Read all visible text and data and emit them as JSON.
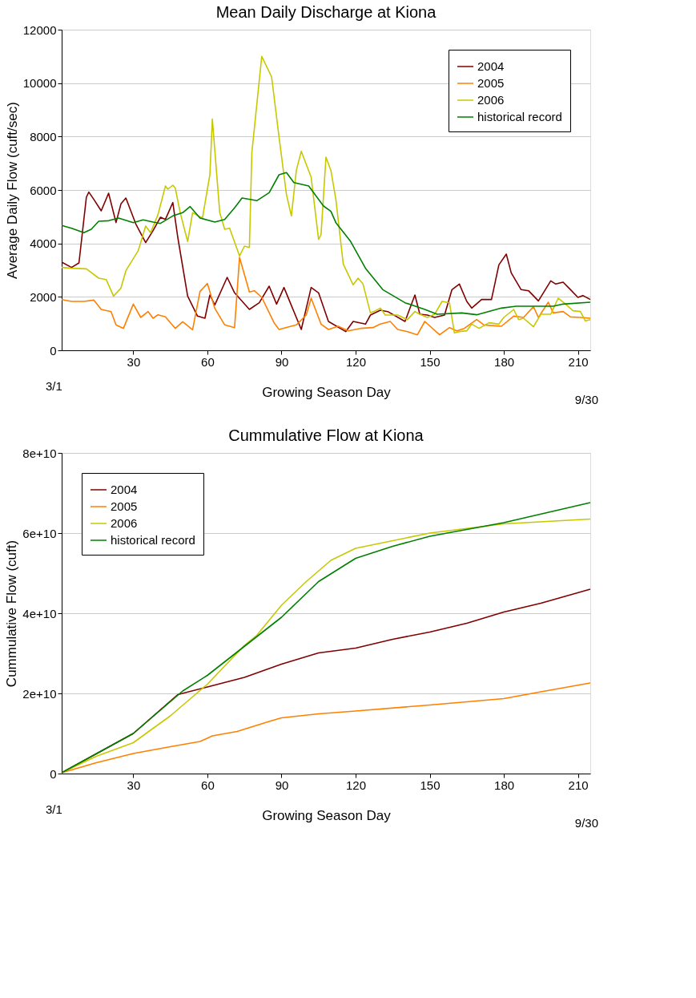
{
  "chart_data": [
    {
      "type": "line",
      "title": "Mean Daily Discharge at Kiona",
      "xlabel": "Growing Season Day",
      "ylabel": "Average Daily Flow (cuft/sec)",
      "xlim": [
        1,
        215
      ],
      "xticks": [
        30,
        60,
        90,
        120,
        150,
        180,
        210
      ],
      "ylim": [
        0,
        12000
      ],
      "yticks": [
        0,
        2000,
        4000,
        6000,
        8000,
        10000,
        12000
      ],
      "grid": "y",
      "legend": "top right",
      "annotations": [
        "3/1",
        "9/30"
      ],
      "series": [
        {
          "name": "2004",
          "color": "#800000",
          "x": [
            1,
            5,
            8,
            11,
            12,
            14,
            17,
            20,
            23,
            25,
            27,
            31,
            35,
            38,
            41,
            43,
            46,
            48,
            52,
            56,
            59,
            61,
            63,
            68,
            71,
            77,
            81,
            85,
            88,
            91,
            93,
            98,
            102,
            105,
            109,
            116,
            119,
            124,
            126,
            130,
            133,
            140,
            144,
            146,
            149,
            152,
            156,
            159,
            162,
            165,
            167,
            171,
            175,
            178,
            181,
            183,
            187,
            190,
            194,
            199,
            201,
            204,
            207,
            210,
            212,
            215
          ],
          "values": [
            3300,
            3100,
            3270,
            5730,
            5920,
            5650,
            5220,
            5880,
            4780,
            5480,
            5700,
            4730,
            4030,
            4480,
            4980,
            4900,
            5530,
            4230,
            2030,
            1280,
            1200,
            2070,
            1700,
            2730,
            2150,
            1530,
            1780,
            2400,
            1730,
            2350,
            1900,
            780,
            2350,
            2150,
            1080,
            700,
            1080,
            980,
            1320,
            1500,
            1450,
            1080,
            2070,
            1350,
            1320,
            1230,
            1320,
            2270,
            2480,
            1830,
            1580,
            1900,
            1900,
            3200,
            3600,
            2900,
            2270,
            2230,
            1850,
            2600,
            2480,
            2550,
            2270,
            1980,
            2050,
            1900
          ]
        },
        {
          "name": "2005",
          "color": "#ff8000",
          "x": [
            1,
            5,
            10,
            14,
            17,
            21,
            23,
            26,
            30,
            33,
            36,
            38,
            40,
            43,
            47,
            50,
            54,
            57,
            60,
            63,
            67,
            71,
            73,
            77,
            79,
            82,
            87,
            89,
            96,
            100,
            102,
            106,
            109,
            113,
            117,
            122,
            127,
            130,
            134,
            137,
            141,
            145,
            148,
            154,
            158,
            161,
            164,
            169,
            172,
            179,
            184,
            188,
            192,
            194,
            198,
            200,
            204,
            207,
            211,
            215
          ],
          "values": [
            1900,
            1830,
            1830,
            1880,
            1530,
            1450,
            950,
            820,
            1730,
            1230,
            1450,
            1200,
            1330,
            1250,
            820,
            1070,
            770,
            2200,
            2500,
            1570,
            950,
            850,
            3480,
            2180,
            2230,
            1980,
            1030,
            780,
            950,
            1320,
            1950,
            980,
            780,
            900,
            730,
            820,
            850,
            980,
            1080,
            780,
            700,
            580,
            1080,
            580,
            850,
            730,
            820,
            1150,
            950,
            900,
            1280,
            1230,
            1630,
            1230,
            1800,
            1400,
            1450,
            1250,
            1230,
            1200
          ]
        },
        {
          "name": "2006",
          "color": "#c8c800",
          "x": [
            1,
            5,
            11,
            16,
            19,
            22,
            25,
            27,
            32,
            35,
            37,
            40,
            43,
            44,
            46,
            47,
            49,
            52,
            54,
            58,
            61,
            62,
            65,
            67,
            69,
            73,
            75,
            77,
            78,
            82,
            86,
            89,
            92,
            94,
            96,
            98,
            102,
            105,
            106,
            108,
            110,
            112,
            115,
            119,
            121,
            123,
            126,
            128,
            130,
            132,
            137,
            141,
            144,
            146,
            149,
            152,
            155,
            158,
            160,
            162,
            165,
            167,
            170,
            174,
            178,
            180,
            184,
            186,
            188,
            192,
            195,
            199,
            202,
            205,
            208,
            211,
            213,
            215
          ],
          "values": [
            3100,
            3070,
            3050,
            2700,
            2650,
            2030,
            2330,
            2980,
            3730,
            4650,
            4400,
            5080,
            6150,
            6030,
            6180,
            6070,
            5150,
            4070,
            5150,
            4950,
            6570,
            8650,
            5150,
            4530,
            4570,
            3530,
            3900,
            3850,
            7400,
            11000,
            10230,
            7980,
            5830,
            5030,
            6730,
            7450,
            6480,
            4150,
            4330,
            7230,
            6730,
            5650,
            3230,
            2450,
            2700,
            2480,
            1400,
            1480,
            1580,
            1320,
            1320,
            1150,
            1450,
            1350,
            1230,
            1350,
            1830,
            1780,
            650,
            700,
            730,
            980,
            820,
            1030,
            980,
            1230,
            1530,
            1150,
            1200,
            880,
            1350,
            1350,
            1950,
            1730,
            1480,
            1450,
            1100,
            1150
          ]
        },
        {
          "name": "historical record",
          "color": "#008000",
          "x": [
            1,
            5,
            10,
            13,
            16,
            20,
            24,
            30,
            34,
            38,
            41,
            46,
            50,
            53,
            57,
            63,
            67,
            71,
            74,
            80,
            85,
            89,
            92,
            95,
            101,
            107,
            110,
            112,
            118,
            124,
            131,
            140,
            148,
            153,
            163,
            169,
            179,
            185,
            200,
            204,
            215
          ],
          "values": [
            4670,
            4570,
            4400,
            4530,
            4830,
            4850,
            4950,
            4780,
            4880,
            4800,
            4750,
            5030,
            5150,
            5380,
            4950,
            4800,
            4900,
            5330,
            5700,
            5600,
            5900,
            6570,
            6650,
            6280,
            6150,
            5400,
            5200,
            4780,
            4070,
            3070,
            2270,
            1780,
            1530,
            1350,
            1400,
            1330,
            1580,
            1650,
            1650,
            1730,
            1800
          ]
        }
      ]
    },
    {
      "type": "line",
      "title": "Cummulative Flow at Kiona",
      "xlabel": "Growing Season Day",
      "ylabel": "Cummulative Flow (cuft)",
      "xlim": [
        1,
        215
      ],
      "xticks": [
        30,
        60,
        90,
        120,
        150,
        180,
        210
      ],
      "ylim": [
        0,
        80000000000
      ],
      "yticks": [
        0,
        {
          "value": 20000000000,
          "label": "2e+10"
        },
        {
          "value": 40000000000,
          "label": "4e+10"
        },
        {
          "value": 60000000000,
          "label": "6e+10"
        },
        {
          "value": 80000000000,
          "label": "8e+10"
        }
      ],
      "grid": "y",
      "legend": "top left",
      "annotations": [
        "3/1",
        "9/30"
      ],
      "series": [
        {
          "name": "2004",
          "color": "#800000",
          "x": [
            1,
            30,
            48,
            60,
            75,
            90,
            105,
            120,
            135,
            150,
            165,
            180,
            195,
            215
          ],
          "values": [
            200000000,
            10000000000,
            19700000000,
            21600000000,
            24000000000,
            27300000000,
            30100000000,
            31300000000,
            33500000000,
            35300000000,
            37500000000,
            40300000000,
            42500000000,
            46000000000
          ]
        },
        {
          "name": "2005",
          "color": "#ff8000",
          "x": [
            1,
            15,
            30,
            45,
            57,
            62,
            72,
            85,
            90,
            105,
            120,
            150,
            180,
            195,
            215
          ],
          "values": [
            200000000,
            2700000000,
            5000000000,
            6700000000,
            8000000000,
            9400000000,
            10500000000,
            13000000000,
            13900000000,
            14900000000,
            15600000000,
            17100000000,
            18700000000,
            20400000000,
            22600000000
          ]
        },
        {
          "name": "2006",
          "color": "#c8c800",
          "x": [
            1,
            15,
            30,
            45,
            60,
            75,
            80,
            90,
            100,
            110,
            120,
            150,
            180,
            215
          ],
          "values": [
            200000000,
            4300000000,
            7700000000,
            14400000000,
            22300000000,
            32000000000,
            34500000000,
            42000000000,
            47900000000,
            53200000000,
            56200000000,
            60000000000,
            62300000000,
            63500000000
          ]
        },
        {
          "name": "historical record",
          "color": "#008000",
          "x": [
            1,
            30,
            50,
            60,
            90,
            105,
            120,
            135,
            150,
            180,
            215
          ],
          "values": [
            200000000,
            10000000000,
            20600000000,
            24500000000,
            39000000000,
            47900000000,
            53700000000,
            56700000000,
            59200000000,
            62600000000,
            67600000000
          ]
        }
      ]
    }
  ]
}
